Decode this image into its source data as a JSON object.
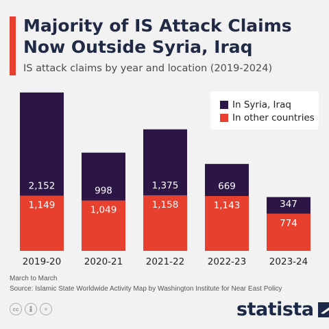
{
  "header": {
    "title": "Majority of IS Attack Claims Now Outside Syria, Iraq",
    "subtitle": "IS attack claims by year and location (2019-2024)"
  },
  "colors": {
    "syria_iraq": "#2b1646",
    "other": "#e8402f",
    "accent": "#e8402f",
    "background": "#f2f2f2"
  },
  "legend": {
    "placement": "top-right",
    "items": [
      "In Syria, Iraq",
      "In other countries"
    ]
  },
  "chart_data": {
    "type": "bar",
    "stacked": true,
    "categories": [
      "2019-20",
      "2020-21",
      "2021-22",
      "2022-23",
      "2023-24"
    ],
    "series": [
      {
        "name": "In other countries",
        "values": [
          1149,
          1049,
          1158,
          1143,
          774
        ]
      },
      {
        "name": "In Syria, Iraq",
        "values": [
          2152,
          998,
          1375,
          669,
          347
        ]
      }
    ],
    "value_labels": {
      "In other countries": [
        "1,149",
        "1,049",
        "1,158",
        "1,143",
        "774"
      ],
      "In Syria, Iraq": [
        "2,152",
        "998",
        "1,375",
        "669",
        "347"
      ]
    },
    "ylim": [
      0,
      3300
    ],
    "grid": false
  },
  "footer": {
    "note": "March to March",
    "source": "Source: Islamic State Worldwide Activity Map by Washington Institute for Near East Policy",
    "brand": "statista",
    "icons": [
      "cc-icon",
      "by-icon",
      "equals-icon"
    ]
  }
}
